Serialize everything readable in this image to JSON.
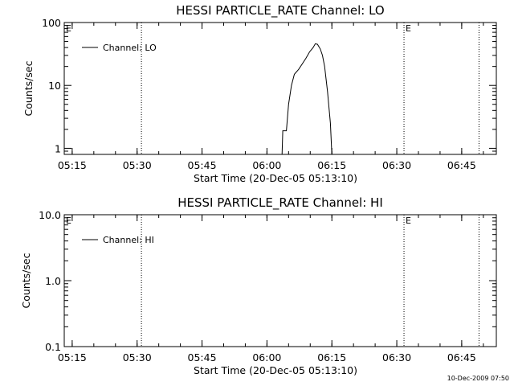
{
  "footer_timestamp": "10-Dec-2009 07:50",
  "colors": {
    "background": "#ffffff",
    "foreground": "#000000"
  },
  "chart_data": [
    {
      "type": "line",
      "title": "HESSI PARTICLE_RATE Channel: LO",
      "xlabel": "Start Time (20-Dec-05 05:13:10)",
      "ylabel": "Counts/sec",
      "yscale": "log",
      "xlim": [
        "05:13:10",
        "06:53:00"
      ],
      "ylim": [
        0.8,
        100
      ],
      "x_ticks": [
        "05:15",
        "05:30",
        "05:45",
        "06:00",
        "06:15",
        "06:30",
        "06:45"
      ],
      "y_ticks": [
        "1",
        "10",
        "100"
      ],
      "marker_lines": [
        "05:31:00",
        "06:31:40",
        "06:49:00"
      ],
      "marker_labels": [
        {
          "text": "E",
          "x": "05:13:10"
        },
        {
          "text": "E",
          "x": "06:31:40"
        }
      ],
      "legend": {
        "position": "top-left",
        "entries": [
          "Channel: LO"
        ]
      },
      "series": [
        {
          "name": "Channel: LO",
          "points": [
            [
              "06:03:30",
              0.8
            ],
            [
              "06:03:40",
              1.9
            ],
            [
              "06:04:30",
              1.9
            ],
            [
              "06:05:00",
              5
            ],
            [
              "06:05:40",
              10
            ],
            [
              "06:06:20",
              15
            ],
            [
              "06:07:20",
              18
            ],
            [
              "06:08:10",
              22
            ],
            [
              "06:09:00",
              27
            ],
            [
              "06:09:50",
              34
            ],
            [
              "06:10:40",
              40
            ],
            [
              "06:11:10",
              46
            ],
            [
              "06:11:40",
              45
            ],
            [
              "06:12:20",
              38
            ],
            [
              "06:12:50",
              30
            ],
            [
              "06:13:20",
              20
            ],
            [
              "06:14:00",
              8
            ],
            [
              "06:14:40",
              2.5
            ],
            [
              "06:15:00",
              0.8
            ]
          ]
        }
      ]
    },
    {
      "type": "line",
      "title": "HESSI PARTICLE_RATE Channel: HI",
      "xlabel": "Start Time (20-Dec-05 05:13:10)",
      "ylabel": "Counts/sec",
      "yscale": "log",
      "xlim": [
        "05:13:10",
        "06:53:00"
      ],
      "ylim": [
        0.1,
        10
      ],
      "x_ticks": [
        "05:15",
        "05:30",
        "05:45",
        "06:00",
        "06:15",
        "06:30",
        "06:45"
      ],
      "y_ticks": [
        "0.1",
        "1.0",
        "10.0"
      ],
      "marker_lines": [
        "05:31:00",
        "06:31:40",
        "06:49:00"
      ],
      "marker_labels": [
        {
          "text": "E",
          "x": "05:13:10"
        },
        {
          "text": "E",
          "x": "06:31:40"
        }
      ],
      "legend": {
        "position": "top-left",
        "entries": [
          "Channel: HI"
        ]
      },
      "series": [
        {
          "name": "Channel: HI",
          "points": []
        }
      ]
    }
  ]
}
